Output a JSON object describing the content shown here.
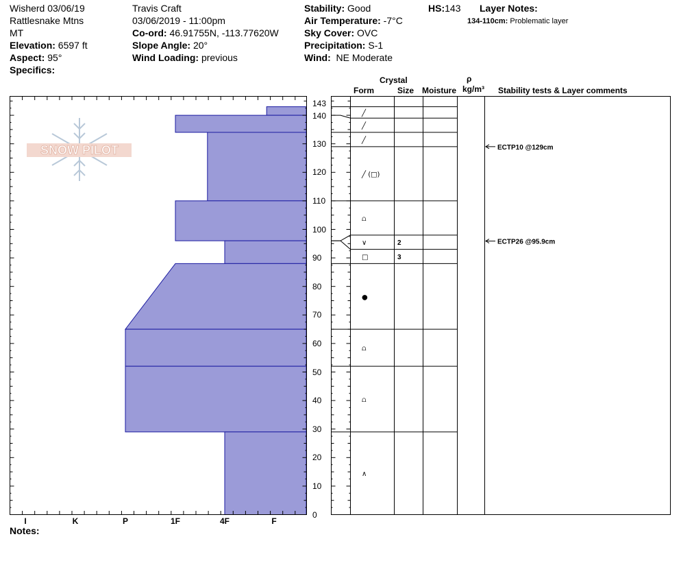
{
  "header": {
    "location_line1": "Wisherd 03/06/19",
    "location_line2": "Rattlesnake Mtns",
    "location_line3": "MT",
    "elevation_label": "Elevation:",
    "elevation_value": "6597 ft",
    "aspect_label": "Aspect:",
    "aspect_value": "95°",
    "specifics_label": "Specifics:",
    "observer": "Travis  Craft",
    "datetime": "03/06/2019 - 11:00pm",
    "coord_label": "Co-ord:",
    "coord_value": "46.91755N, -113.77620W",
    "slope_label": "Slope Angle:",
    "slope_value": "20°",
    "wind_loading_label": "Wind Loading:",
    "wind_loading_value": "previous",
    "stability_label": "Stability:",
    "stability_value": "Good",
    "air_temp_label": "Air Temperature:",
    "air_temp_value": "-7°C",
    "sky_label": "Sky Cover:",
    "sky_value": "OVC",
    "precip_label": "Precipitation:",
    "precip_value": "S-1",
    "wind_label": "Wind:",
    "wind_value": "NE Moderate",
    "hs_label": "HS:",
    "hs_value": "143",
    "layer_notes_label": "Layer Notes:",
    "layer_note_range": "134-110cm:",
    "layer_note_text": "Problematic layer"
  },
  "logo_text": "SNOW PILOT",
  "notes_label": "Notes:",
  "columns": {
    "crystal": "Crystal",
    "form": "Form",
    "size": "Size",
    "moisture": "Moisture",
    "rho": "ρ",
    "density_unit": "kg/m³",
    "stability": "Stability tests & Layer comments"
  },
  "colors": {
    "fill": "#9b9bd8",
    "stroke": "#1a1aa0"
  },
  "chart_data": {
    "type": "area",
    "title": "",
    "ylabel": "",
    "ylim": [
      0,
      147
    ],
    "y_ticks": [
      0,
      10,
      20,
      30,
      40,
      50,
      60,
      70,
      80,
      90,
      100,
      110,
      120,
      130,
      140,
      143
    ],
    "hardness_categories": [
      "I",
      "K",
      "P",
      "1F",
      "4F",
      "F"
    ],
    "hardness_profile": [
      {
        "top": 143,
        "bottom": 140,
        "h_top": 5.85,
        "h_bottom": 5.85
      },
      {
        "top": 140,
        "bottom": 134,
        "h_top": 4,
        "h_bottom": 4
      },
      {
        "top": 134,
        "bottom": 110,
        "h_top": 4.65,
        "h_bottom": 4.65
      },
      {
        "top": 110,
        "bottom": 96,
        "h_top": 4,
        "h_bottom": 4
      },
      {
        "top": 96,
        "bottom": 88,
        "h_top": 5,
        "h_bottom": 5
      },
      {
        "top": 88,
        "bottom": 65,
        "h_top": 4,
        "h_bottom": 3
      },
      {
        "top": 65,
        "bottom": 52,
        "h_top": 3,
        "h_bottom": 3
      },
      {
        "top": 52,
        "bottom": 29,
        "h_top": 3,
        "h_bottom": 3
      },
      {
        "top": 29,
        "bottom": 0,
        "h_top": 5,
        "h_bottom": 5
      }
    ],
    "layer_boundaries": [
      143,
      139,
      134,
      129,
      110,
      98,
      93,
      88,
      65,
      52,
      29,
      0
    ],
    "layers": [
      {
        "top": 143,
        "bottom": 139,
        "form": "╱",
        "size": ""
      },
      {
        "top": 139,
        "bottom": 134,
        "form": "╱",
        "size": ""
      },
      {
        "top": 134,
        "bottom": 129,
        "form": "╱",
        "size": ""
      },
      {
        "top": 129,
        "bottom": 110,
        "form": "╱ (□)",
        "size": ""
      },
      {
        "top": 110,
        "bottom": 98,
        "form": "⩍",
        "size": ""
      },
      {
        "top": 98,
        "bottom": 93,
        "form": "∨",
        "size": "2"
      },
      {
        "top": 93,
        "bottom": 88,
        "form": "□",
        "size": "3"
      },
      {
        "top": 88,
        "bottom": 65,
        "form": "●",
        "size": ""
      },
      {
        "top": 65,
        "bottom": 52,
        "form": "⩍",
        "size": ""
      },
      {
        "top": 52,
        "bottom": 29,
        "form": "⩍",
        "size": ""
      },
      {
        "top": 29,
        "bottom": 0,
        "form": "∧",
        "size": ""
      }
    ],
    "stability_tests": [
      {
        "depth": 129,
        "label": "ECTP10 @129cm"
      },
      {
        "depth": 95.9,
        "label": "ECTP26 @95.9cm"
      }
    ]
  }
}
